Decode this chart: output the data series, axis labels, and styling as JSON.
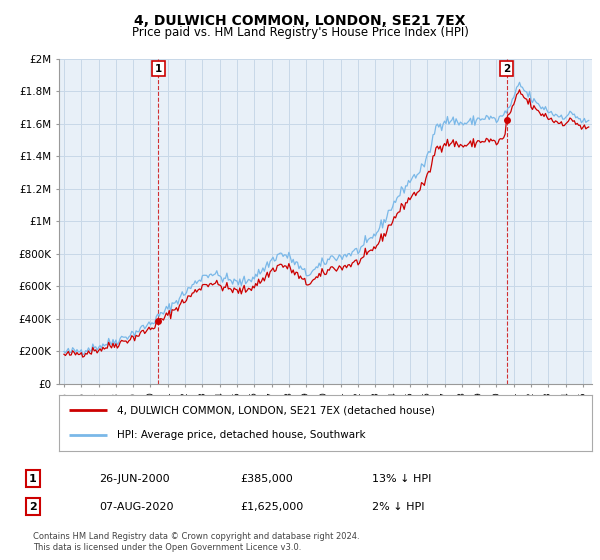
{
  "title": "4, DULWICH COMMON, LONDON, SE21 7EX",
  "subtitle": "Price paid vs. HM Land Registry's House Price Index (HPI)",
  "legend_entry1": "4, DULWICH COMMON, LONDON, SE21 7EX (detached house)",
  "legend_entry2": "HPI: Average price, detached house, Southwark",
  "annotation1_date": "26-JUN-2000",
  "annotation1_price": "£385,000",
  "annotation1_hpi": "13% ↓ HPI",
  "annotation2_date": "07-AUG-2020",
  "annotation2_price": "£1,625,000",
  "annotation2_hpi": "2% ↓ HPI",
  "t1_x": 2000.458,
  "t1_price": 385000,
  "t2_x": 2020.583,
  "t2_price": 1625000,
  "hpi_color": "#7ab8e8",
  "price_color": "#cc0000",
  "dashed_color": "#cc0000",
  "chart_bg": "#e8f0f8",
  "ylabel_ticks": [
    "£0",
    "£200K",
    "£400K",
    "£600K",
    "£800K",
    "£1M",
    "£1.2M",
    "£1.4M",
    "£1.6M",
    "£1.8M",
    "£2M"
  ],
  "ytick_values": [
    0,
    200000,
    400000,
    600000,
    800000,
    1000000,
    1200000,
    1400000,
    1600000,
    1800000,
    2000000
  ],
  "ylim": [
    0,
    2000000
  ],
  "xlim_start": 1994.7,
  "xlim_end": 2025.5,
  "footer": "Contains HM Land Registry data © Crown copyright and database right 2024.\nThis data is licensed under the Open Government Licence v3.0.",
  "background_color": "#ffffff",
  "grid_color": "#c8d8e8"
}
